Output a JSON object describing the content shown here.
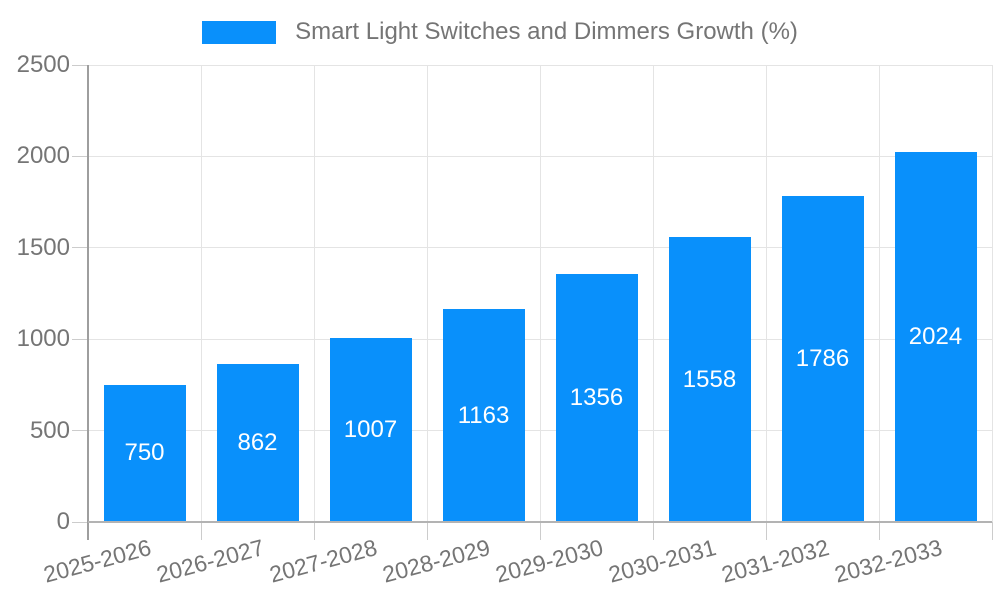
{
  "chart_data": {
    "type": "bar",
    "title": "Smart Light Switches and Dimmers Growth (%)",
    "categories": [
      "2025-2026",
      "2026-2027",
      "2027-2028",
      "2028-2029",
      "2029-2030",
      "2030-2031",
      "2031-2032",
      "2032-2033"
    ],
    "values": [
      750,
      862,
      1007,
      1163,
      1356,
      1558,
      1786,
      2024
    ],
    "series": [
      {
        "name": "Smart Light Switches and Dimmers Growth (%)",
        "values": [
          750,
          862,
          1007,
          1163,
          1356,
          1558,
          1786,
          2024
        ]
      }
    ],
    "xlabel": "",
    "ylabel": "",
    "ylim": [
      0,
      2500
    ],
    "yticks": [
      0,
      500,
      1000,
      1500,
      2000,
      2500
    ],
    "grid": true,
    "legend_position": "top",
    "bar_color": "#0990fb",
    "value_label_color": "#ffffff",
    "axis_text_color": "#757575"
  }
}
